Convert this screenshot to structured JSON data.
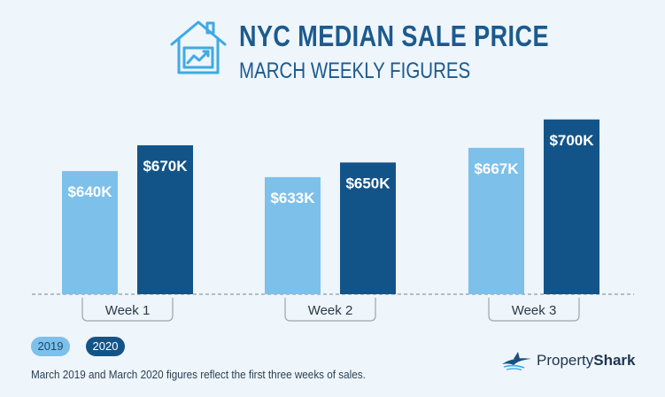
{
  "header": {
    "title": "NYC MEDIAN SALE PRICE",
    "subtitle": "MARCH WEEKLY FIGURES"
  },
  "legend": [
    {
      "label": "2019",
      "color": "#7dc0ea"
    },
    {
      "label": "2020",
      "color": "#135488"
    }
  ],
  "footnote": "March 2019 and March 2020 figures reflect the first three weeks of sales.",
  "brand": {
    "name_part1": "Property",
    "name_part2": "Shark"
  },
  "chart_data": {
    "type": "bar",
    "title": "NYC MEDIAN SALE PRICE",
    "subtitle": "MARCH WEEKLY FIGURES",
    "categories": [
      "Week 1",
      "Week 2",
      "Week 3"
    ],
    "series": [
      {
        "name": "2019",
        "color": "#7dc0ea",
        "values": [
          640,
          633,
          667
        ],
        "labels": [
          "$640K",
          "$633K",
          "$667K"
        ]
      },
      {
        "name": "2020",
        "color": "#135488",
        "values": [
          670,
          650,
          700
        ],
        "labels": [
          "$670K",
          "$650K",
          "$700K"
        ]
      }
    ],
    "grid": false,
    "legend_position": "bottom-left"
  }
}
